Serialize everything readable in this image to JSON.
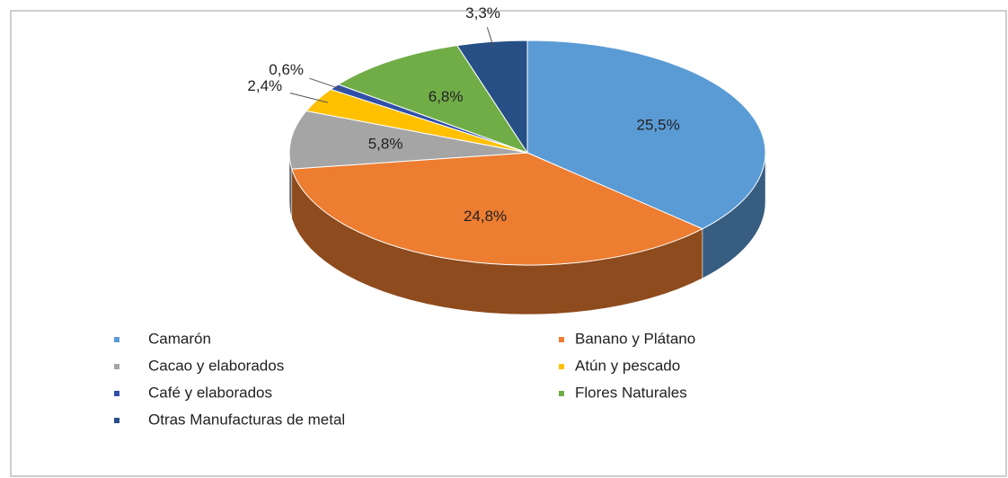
{
  "chart_data": {
    "type": "pie",
    "three_d": true,
    "categories": [
      "Camarón",
      "Banano y Plátano",
      "Cacao y elaborados",
      "Atún y pescado",
      "Café y elaborados",
      "Flores Naturales",
      "Otras Manufacturas de metal"
    ],
    "values": [
      25.5,
      24.8,
      5.8,
      2.4,
      0.6,
      6.8,
      3.3
    ],
    "value_labels": [
      "25,5%",
      "24,8%",
      "5,8%",
      "2,4%",
      "0,6%",
      "6,8%",
      "3,3%"
    ],
    "colors": [
      "#5b9bd5",
      "#ed7d31",
      "#a5a5a5",
      "#ffc000",
      "#2f4fa8",
      "#70ad47",
      "#264f86"
    ],
    "legend": "bottom"
  }
}
